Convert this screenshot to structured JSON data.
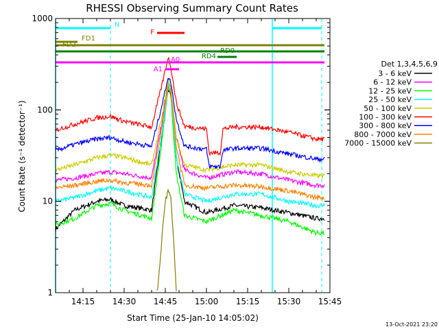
{
  "chart_data": {
    "type": "line",
    "title": "RHESSI Observing Summary Count Rates",
    "xlabel": "Start Time (25-Jan-10 14:05:02)",
    "ylabel": "Count Rate (s⁻¹ detector⁻¹)",
    "yscale": "log",
    "ylim": [
      1,
      1000
    ],
    "xlim": [
      "14:05",
      "15:45"
    ],
    "x_ticks": [
      "14:15",
      "14:30",
      "14:45",
      "15:00",
      "15:15",
      "15:30",
      "15:45"
    ],
    "y_ticks": [
      "1",
      "10",
      "100",
      "1000"
    ],
    "legend_title": "Det 1,3,4,5,6,9",
    "legend_position": "right",
    "grid": false,
    "series": [
      {
        "name": "3 - 6 keV",
        "color": "#000000",
        "x": [
          "14:05",
          "14:12",
          "14:20",
          "14:25",
          "14:30",
          "14:40",
          "14:44",
          "14:46",
          "14:47",
          "14:49",
          "14:52",
          "15:00",
          "15:10",
          "15:20",
          "15:30",
          "15:40",
          "15:43"
        ],
        "y": [
          5,
          8,
          10,
          10.5,
          9,
          8,
          60,
          170,
          140,
          30,
          10,
          7.5,
          9,
          8.5,
          7.5,
          6.5,
          6.5
        ]
      },
      {
        "name": "6 - 12 keV",
        "color": "#ff00ff",
        "x": [
          "14:05",
          "14:12",
          "14:20",
          "14:25",
          "14:30",
          "14:40",
          "14:44",
          "14:46",
          "14:47",
          "14:49",
          "14:52",
          "15:00",
          "15:10",
          "15:20",
          "15:30",
          "15:40",
          "15:43"
        ],
        "y": [
          17,
          18,
          20,
          21,
          20,
          18,
          80,
          200,
          170,
          50,
          22,
          18,
          21,
          20,
          17,
          15,
          15
        ]
      },
      {
        "name": "12 - 25 keV",
        "color": "#00ff00",
        "x": [
          "14:05",
          "14:12",
          "14:20",
          "14:25",
          "14:30",
          "14:40",
          "14:44",
          "14:46",
          "14:47",
          "14:49",
          "14:52",
          "15:00",
          "15:10",
          "15:20",
          "15:30",
          "15:40",
          "15:43"
        ],
        "y": [
          5.5,
          6.5,
          9,
          9.5,
          8,
          6.5,
          50,
          180,
          150,
          20,
          7,
          6,
          8,
          7,
          6,
          4.5,
          4.5
        ]
      },
      {
        "name": "25 - 50 keV",
        "color": "#00ffff",
        "x": [
          "14:05",
          "14:12",
          "14:20",
          "14:25",
          "14:30",
          "14:40",
          "14:44",
          "14:46",
          "14:47",
          "14:49",
          "14:52",
          "15:00",
          "15:10",
          "15:20",
          "15:30",
          "15:40",
          "15:43"
        ],
        "y": [
          10,
          11,
          13,
          14,
          13,
          11,
          60,
          190,
          160,
          30,
          12,
          10,
          12,
          12,
          10,
          9,
          9
        ]
      },
      {
        "name": "50 - 100 keV",
        "color": "#cccc00",
        "x": [
          "14:05",
          "14:12",
          "14:20",
          "14:25",
          "14:30",
          "14:40",
          "14:44",
          "14:46",
          "14:47",
          "14:49",
          "14:52",
          "15:00",
          "15:10",
          "15:20",
          "15:30",
          "15:40",
          "15:43"
        ],
        "y": [
          22,
          25,
          30,
          32,
          30,
          25,
          90,
          210,
          180,
          50,
          25,
          22,
          25,
          25,
          21,
          19,
          19
        ]
      },
      {
        "name": "100 - 300 keV",
        "color": "#ff0000",
        "x": [
          "14:05",
          "14:12",
          "14:20",
          "14:25",
          "14:30",
          "14:40",
          "14:44",
          "14:46",
          "14:47",
          "14:49",
          "14:52",
          "15:00",
          "15:01",
          "15:05",
          "15:06",
          "15:10",
          "15:20",
          "15:30",
          "15:40",
          "15:43"
        ],
        "y": [
          60,
          70,
          82,
          85,
          75,
          65,
          200,
          380,
          300,
          120,
          66,
          62,
          34,
          34,
          62,
          65,
          65,
          57,
          48,
          48
        ]
      },
      {
        "name": "300 - 800 keV",
        "color": "#0000ff",
        "x": [
          "14:05",
          "14:12",
          "14:20",
          "14:25",
          "14:30",
          "14:40",
          "14:44",
          "14:46",
          "14:47",
          "14:49",
          "14:52",
          "15:00",
          "15:01",
          "15:05",
          "15:06",
          "15:10",
          "15:20",
          "15:30",
          "15:40",
          "15:43"
        ],
        "y": [
          36,
          42,
          48,
          50,
          45,
          40,
          120,
          230,
          200,
          80,
          40,
          37,
          24,
          24,
          36,
          38,
          38,
          33,
          29,
          29
        ]
      },
      {
        "name": "800 - 7000 keV",
        "color": "#ff8000",
        "x": [
          "14:05",
          "14:12",
          "14:20",
          "14:25",
          "14:30",
          "14:40",
          "14:44",
          "14:46",
          "14:47",
          "14:49",
          "14:52",
          "15:00",
          "15:10",
          "15:20",
          "15:30",
          "15:40",
          "15:43"
        ],
        "y": [
          14,
          15,
          16.5,
          17,
          16,
          15,
          70,
          190,
          160,
          40,
          15,
          14,
          15,
          14.5,
          13,
          11,
          11
        ]
      },
      {
        "name": "7000 - 15000 keV",
        "color": "#808000",
        "x": [
          "14:42",
          "14:43",
          "14:44",
          "14:45",
          "14:46",
          "14:47",
          "14:48",
          "14:49"
        ],
        "y": [
          1,
          2,
          5,
          10,
          13,
          11,
          4,
          1
        ]
      }
    ],
    "annotations": {
      "night_markers": [
        "14:05",
        "15:24"
      ],
      "day_markers": [
        "14:25",
        "15:42"
      ],
      "bars": [
        {
          "label": "N",
          "color": "#00ffff",
          "segments": [
            [
              "14:05",
              "14:25"
            ],
            [
              "15:24",
              "15:42"
            ]
          ]
        },
        {
          "label": "FD1",
          "color": "#808000",
          "segments": [
            [
              "14:05",
              "14:13"
            ]
          ]
        },
        {
          "label": "FD2",
          "color": "#808000",
          "segments": [
            [
              "14:05",
              "15:43"
            ]
          ]
        },
        {
          "label": "F",
          "color": "#ff0000",
          "segments": [
            [
              "14:42",
              "14:52"
            ]
          ]
        },
        {
          "label": "RD0",
          "color": "#008000",
          "segments": [
            [
              "14:05",
              "15:43"
            ]
          ]
        },
        {
          "label": "RD4",
          "color": "#008000",
          "segments": [
            [
              "15:04",
              "15:11"
            ]
          ]
        },
        {
          "label": "A0",
          "color": "#ff00ff",
          "segments": [
            [
              "14:05",
              "15:43"
            ]
          ]
        },
        {
          "label": "A1",
          "color": "#ff00ff",
          "segments": [
            [
              "14:45",
              "14:50"
            ]
          ]
        }
      ]
    }
  },
  "footer": {
    "timestamp": "13-Oct-2021 23:20"
  }
}
